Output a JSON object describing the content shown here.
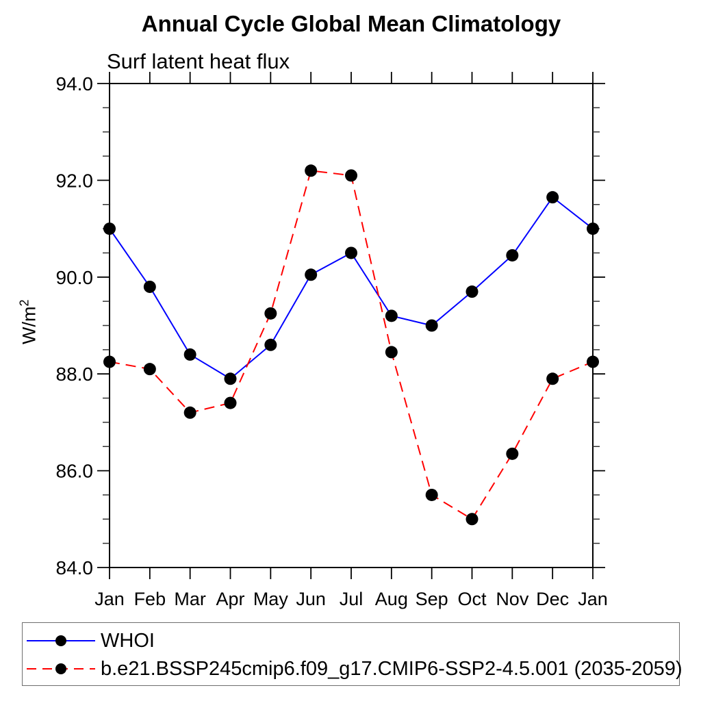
{
  "page": {
    "background": "#ffffff"
  },
  "chart_data": {
    "type": "line",
    "title": "Annual Cycle Global Mean Climatology",
    "subtitle": "Surf latent heat flux",
    "ylabel_base": "W/m",
    "ylabel_exponent": "2",
    "x_categories": [
      "Jan",
      "Feb",
      "Mar",
      "Apr",
      "May",
      "Jun",
      "Jul",
      "Aug",
      "Sep",
      "Oct",
      "Nov",
      "Dec",
      "Jan"
    ],
    "ylim": [
      84.0,
      94.0
    ],
    "ytick_major": [
      84.0,
      86.0,
      88.0,
      90.0,
      92.0,
      94.0
    ],
    "ytick_labels": [
      "84.0",
      "86.0",
      "88.0",
      "90.0",
      "92.0",
      "94.0"
    ],
    "ytick_minor_step": 0.5,
    "grid": "off",
    "legend_position": "bottom-left-box",
    "marker_color": "#000000",
    "axis_color": "#000000",
    "series": [
      {
        "name": "WHOI",
        "color": "#0000ff",
        "line_style": "solid",
        "marker": "filled-circle",
        "values": [
          91.0,
          89.8,
          88.4,
          87.9,
          88.6,
          90.05,
          90.5,
          89.2,
          89.0,
          89.7,
          90.45,
          91.65,
          91.0
        ]
      },
      {
        "name": "b.e21.BSSP245cmip6.f09_g17.CMIP6-SSP2-4.5.001 (2035-2059)",
        "color": "#ff0000",
        "line_style": "dashed",
        "marker": "filled-circle",
        "values": [
          88.25,
          88.1,
          87.2,
          87.4,
          89.25,
          92.2,
          92.1,
          88.45,
          85.5,
          85.0,
          86.35,
          87.9,
          88.25
        ]
      }
    ]
  }
}
